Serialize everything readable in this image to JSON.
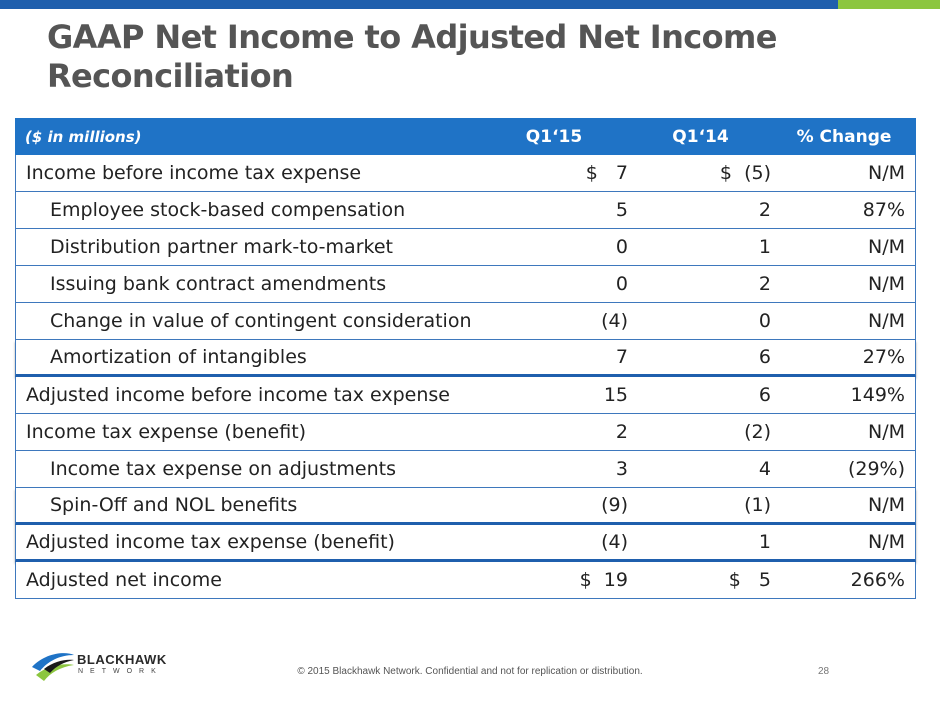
{
  "title": "GAAP Net Income to Adjusted Net Income Reconciliation",
  "table": {
    "header": {
      "label": "($ in millions)",
      "col1": "Q1‘15",
      "col2": "Q1‘14",
      "col3": "% Change"
    },
    "rows": [
      {
        "label": "Income before income tax expense",
        "q1_15": "$   7",
        "q1_14": "$  (5)",
        "change": "N/M"
      },
      {
        "label": "Employee stock-based compensation",
        "q1_15": "5",
        "q1_14": "2",
        "change": "87%"
      },
      {
        "label": "Distribution partner mark-to-market",
        "q1_15": "0",
        "q1_14": "1",
        "change": "N/M"
      },
      {
        "label": "Issuing bank contract amendments",
        "q1_15": "0",
        "q1_14": "2",
        "change": "N/M"
      },
      {
        "label": "Change in value of contingent consideration",
        "q1_15": "(4)",
        "q1_14": "0",
        "change": "N/M"
      },
      {
        "label": "Amortization of intangibles",
        "q1_15": "7",
        "q1_14": "6",
        "change": "27%"
      },
      {
        "label": "Adjusted income before income tax expense",
        "q1_15": "15",
        "q1_14": "6",
        "change": "149%"
      },
      {
        "label": "Income tax expense (benefit)",
        "q1_15": "2",
        "q1_14": "(2)",
        "change": "N/M"
      },
      {
        "label": "Income tax expense on adjustments",
        "q1_15": "3",
        "q1_14": "4",
        "change": "(29%)"
      },
      {
        "label": "Spin-Off and NOL benefits",
        "q1_15": "(9)",
        "q1_14": "(1)",
        "change": "N/M"
      },
      {
        "label": "Adjusted income tax expense (benefit)",
        "q1_15": "(4)",
        "q1_14": "1",
        "change": "N/M"
      },
      {
        "label": "Adjusted net income",
        "q1_15": "$  19",
        "q1_14": "$   5",
        "change": "266%"
      }
    ]
  },
  "footer": {
    "copyright": "© 2015 Blackhawk Network. Confidential and not for replication or distribution.",
    "page_number": "28",
    "logo_name": "BLACKHAWK",
    "logo_sub": "NETWORK"
  },
  "colors": {
    "brand_blue": "#1f5fad",
    "header_blue": "#1f73c6",
    "accent_green": "#8cc63f"
  }
}
